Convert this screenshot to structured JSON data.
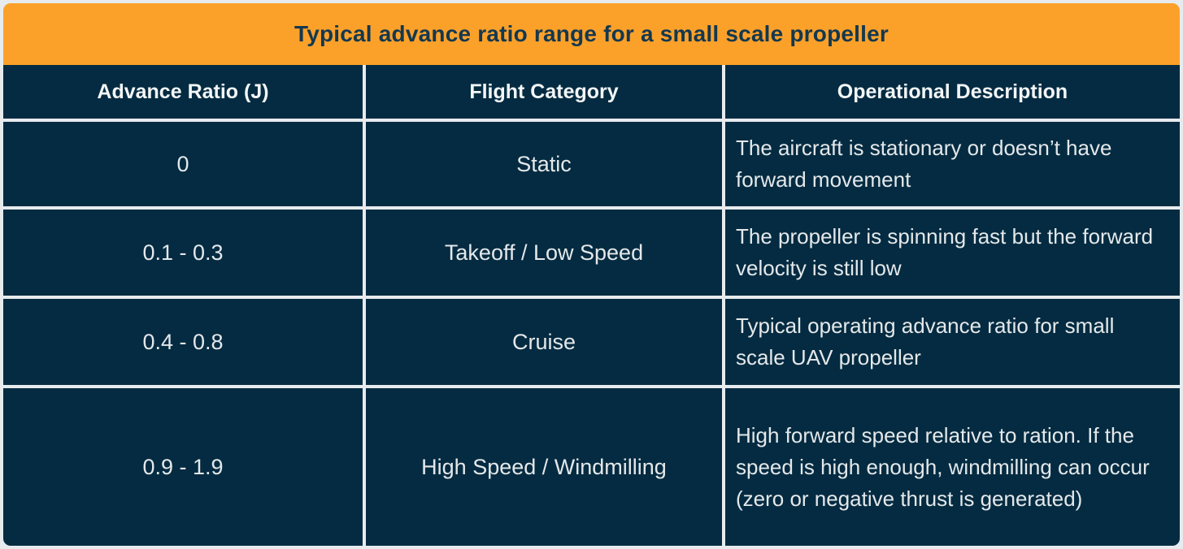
{
  "chart_data": {
    "type": "table",
    "title": "Typical advance ratio range for a small scale propeller",
    "columns": [
      "Advance Ratio (J)",
      "Flight Category",
      "Operational Description"
    ],
    "rows": [
      [
        "0",
        "Static",
        "The aircraft is stationary or doesn’t have forward movement"
      ],
      [
        "0.1 - 0.3",
        "Takeoff / Low Speed",
        "The propeller is spinning fast but the forward velocity is still low"
      ],
      [
        "0.4 - 0.8",
        "Cruise",
        "Typical operating advance ratio for small scale UAV propeller"
      ],
      [
        "0.9 - 1.9",
        "High Speed / Windmilling",
        "High forward speed relative to ration. If the speed is high enough, windmilling can occur (zero or negative thrust is generated)"
      ]
    ],
    "layout": {
      "legend": "none",
      "grid": "light dividers between cells"
    }
  },
  "colors": {
    "banner_orange": "#FBA12A",
    "cell_navy": "#042B41",
    "divider_light": "#E7EBEE",
    "title_navy": "#14384F",
    "header_text": "#F3F6F7",
    "cell_text": "#E4E8EA"
  }
}
